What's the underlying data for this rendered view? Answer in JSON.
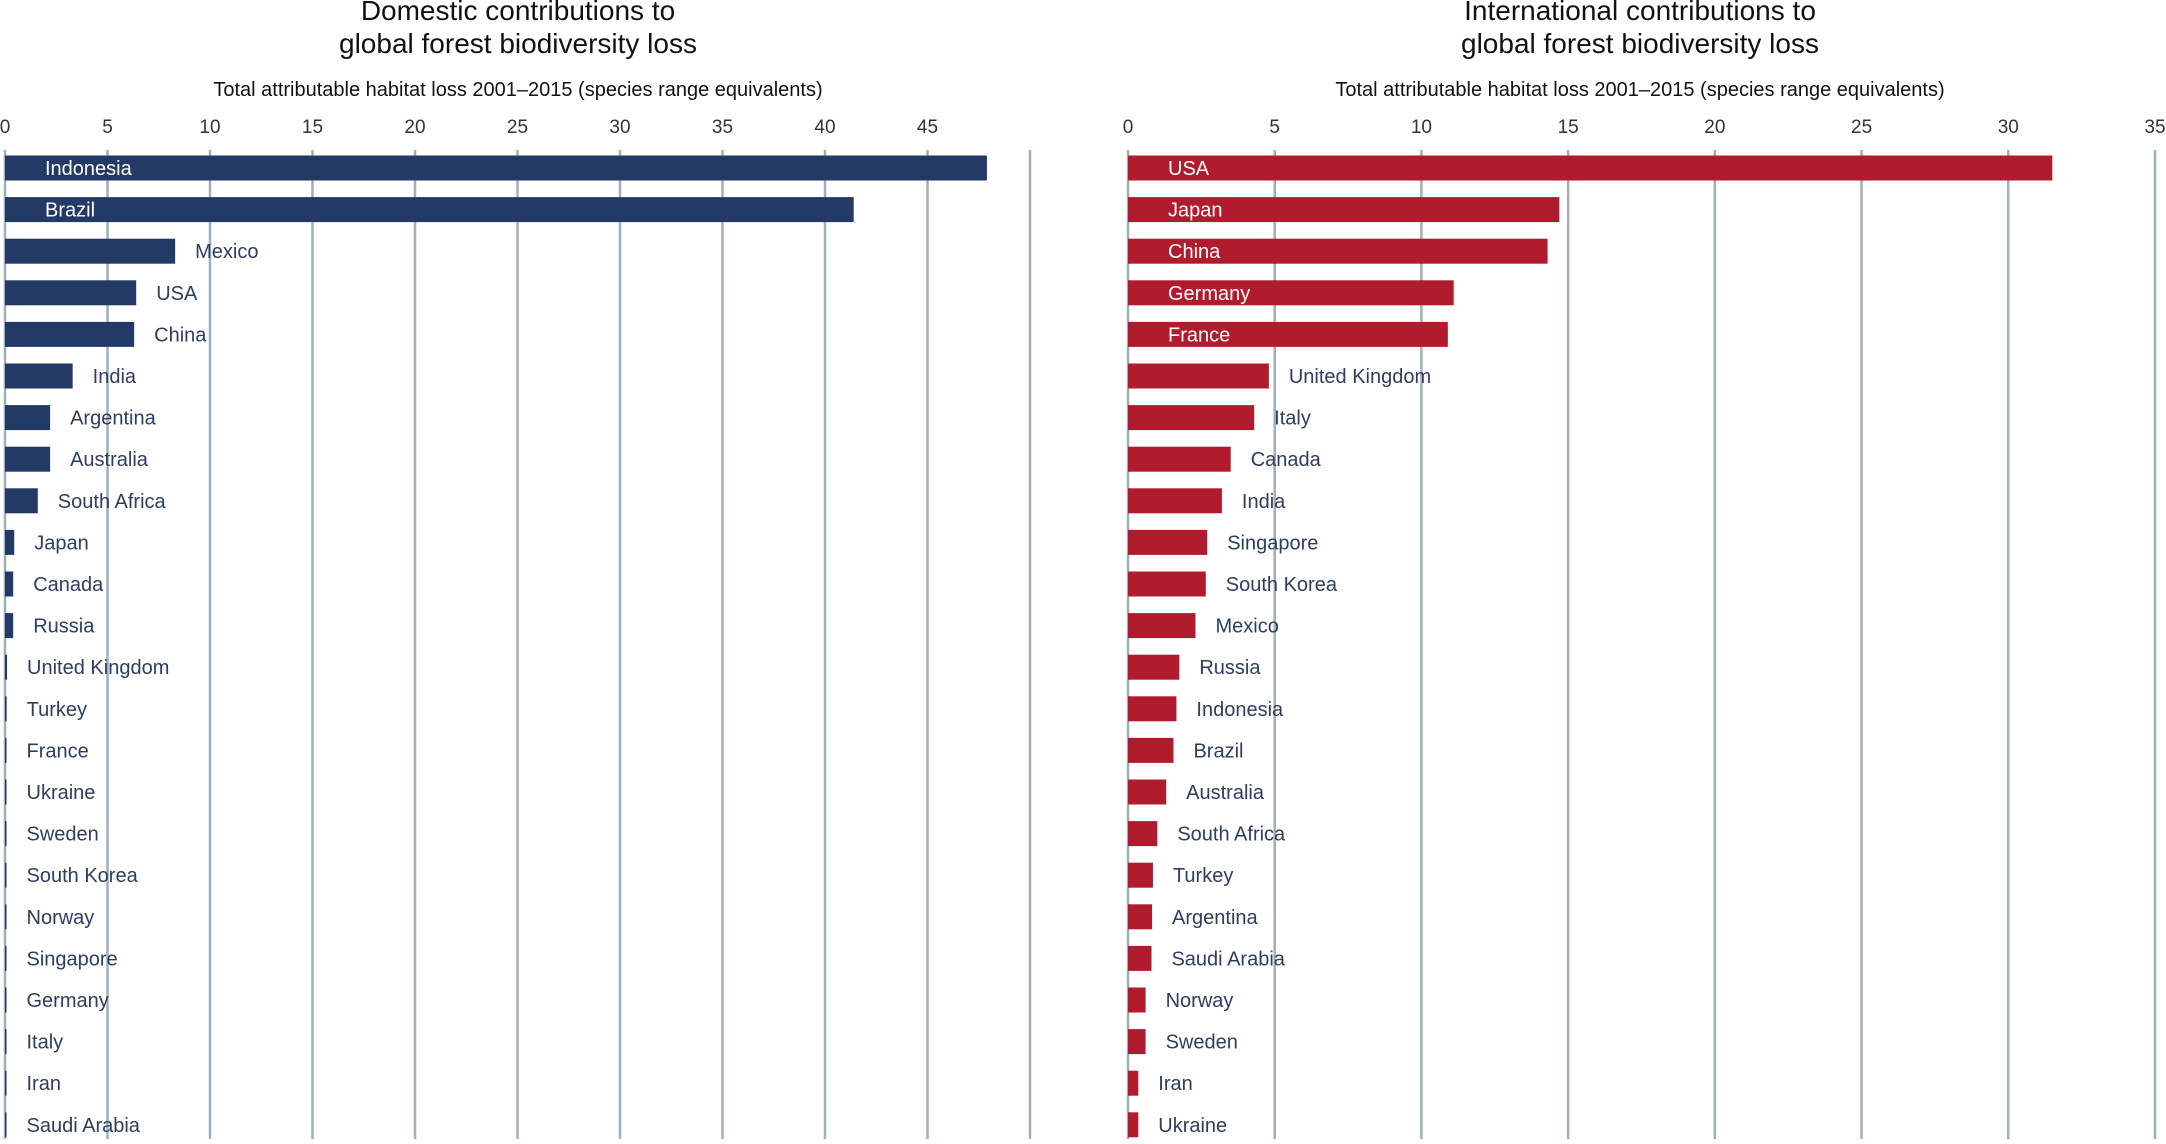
{
  "chart_data": [
    {
      "type": "bar",
      "orientation": "horizontal",
      "title_lines": [
        "Domestic contributions to",
        "global forest biodiversity loss"
      ],
      "xlabel": "Total attributable habitat loss 2001–2015 (species range equivalents)",
      "xlim": [
        0,
        50
      ],
      "xticks": [
        0,
        5,
        10,
        15,
        20,
        25,
        30,
        35,
        40,
        45
      ],
      "grid": true,
      "bar_color": "#243a66",
      "categories": [
        "Indonesia",
        "Brazil",
        "Mexico",
        "USA",
        "China",
        "India",
        "Argentina",
        "Australia",
        "South Africa",
        "Japan",
        "Canada",
        "Russia",
        "United Kingdom",
        "Turkey",
        "France",
        "Ukraine",
        "Sweden",
        "South Korea",
        "Norway",
        "Singapore",
        "Germany",
        "Italy",
        "Iran",
        "Saudi Arabia"
      ],
      "values": [
        47.9,
        41.4,
        8.3,
        6.4,
        6.3,
        3.3,
        2.2,
        2.2,
        1.6,
        0.45,
        0.4,
        0.4,
        0.1,
        0.08,
        0.07,
        0.06,
        0.05,
        0.03,
        0.03,
        0.02,
        0.02,
        0.02,
        0.02,
        0.02
      ]
    },
    {
      "type": "bar",
      "orientation": "horizontal",
      "title_lines": [
        "International contributions to",
        "global forest biodiversity loss"
      ],
      "xlabel": "Total attributable habitat loss 2001–2015 (species range equivalents)",
      "xlim": [
        0,
        35
      ],
      "xticks": [
        0,
        5,
        10,
        15,
        20,
        25,
        30,
        35
      ],
      "grid": true,
      "bar_color": "#b01c2e",
      "categories": [
        "USA",
        "Japan",
        "China",
        "Germany",
        "France",
        "United Kingdom",
        "Italy",
        "Canada",
        "India",
        "Singapore",
        "South Korea",
        "Mexico",
        "Russia",
        "Indonesia",
        "Brazil",
        "Australia",
        "South Africa",
        "Turkey",
        "Argentina",
        "Saudi Arabia",
        "Norway",
        "Sweden",
        "Iran",
        "Ukraine"
      ],
      "values": [
        31.5,
        14.7,
        14.3,
        11.1,
        10.9,
        4.8,
        4.3,
        3.5,
        3.2,
        2.7,
        2.65,
        2.3,
        1.75,
        1.65,
        1.55,
        1.3,
        1.0,
        0.85,
        0.82,
        0.8,
        0.6,
        0.6,
        0.35,
        0.35
      ]
    }
  ]
}
